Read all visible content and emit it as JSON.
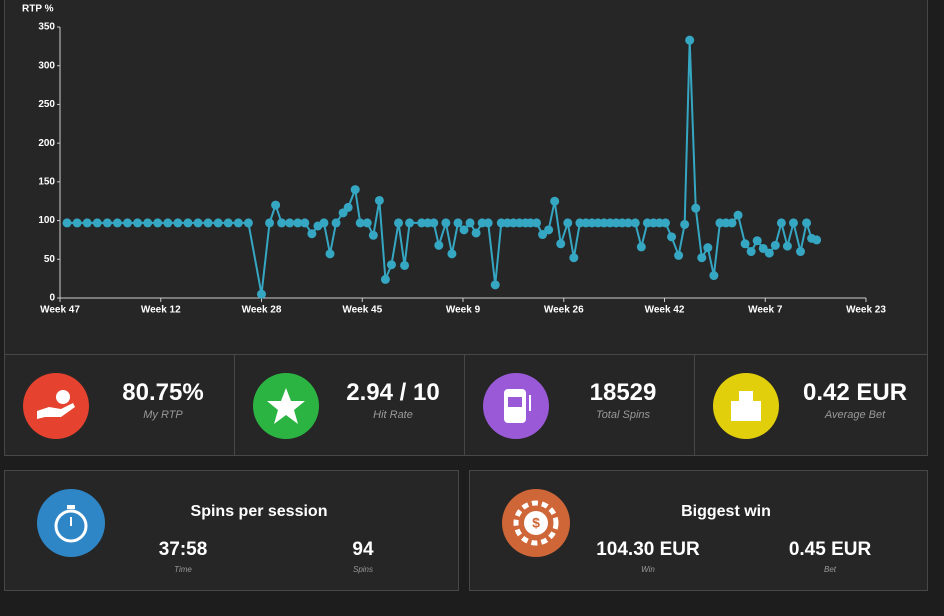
{
  "chart_data": {
    "type": "line",
    "y_label": "RTP %",
    "x": [
      0.07,
      0.17,
      0.27,
      0.37,
      0.47,
      0.57,
      0.67,
      0.77,
      0.87,
      0.97,
      1.07,
      1.17,
      1.27,
      1.37,
      1.47,
      1.57,
      1.67,
      1.77,
      1.87,
      2.0,
      2.08,
      2.14,
      2.2,
      2.28,
      2.36,
      2.43,
      2.5,
      2.56,
      2.62,
      2.68,
      2.74,
      2.81,
      2.86,
      2.93,
      2.98,
      3.05,
      3.11,
      3.17,
      3.23,
      3.29,
      3.36,
      3.42,
      3.47,
      3.59,
      3.65,
      3.71,
      3.76,
      3.83,
      3.89,
      3.95,
      4.01,
      4.07,
      4.13,
      4.19,
      4.25,
      4.32,
      4.38,
      4.44,
      4.5,
      4.56,
      4.62,
      4.67,
      4.73,
      4.79,
      4.85,
      4.91,
      4.97,
      5.04,
      5.1,
      5.16,
      5.22,
      5.28,
      5.34,
      5.4,
      5.46,
      5.52,
      5.58,
      5.64,
      5.71,
      5.77,
      5.83,
      5.89,
      5.95,
      6.01,
      6.07,
      6.14,
      6.2,
      6.25,
      6.31,
      6.37,
      6.43,
      6.49,
      6.55,
      6.61,
      6.67,
      6.73,
      6.8,
      6.86,
      6.92,
      6.98,
      7.04,
      7.1,
      7.16,
      7.22,
      7.28,
      7.35,
      7.41,
      7.46,
      7.51
    ],
    "series": [
      {
        "color": "#35a7c3",
        "values": [
          97,
          97,
          97,
          97,
          97,
          97,
          97,
          97,
          97,
          97,
          97,
          97,
          97,
          97,
          97,
          97,
          97,
          97,
          97,
          5,
          97,
          120,
          97,
          97,
          97,
          97,
          83,
          93,
          97,
          57,
          97,
          110,
          117,
          140,
          97,
          97,
          81,
          126,
          24,
          43,
          97,
          42,
          97,
          97,
          97,
          97,
          68,
          97,
          57,
          97,
          88,
          97,
          84,
          97,
          97,
          17,
          97,
          97,
          97,
          97,
          97,
          97,
          97,
          82,
          88,
          125,
          70,
          97,
          52,
          97,
          97,
          97,
          97,
          97,
          97,
          97,
          97,
          97,
          97,
          66,
          97,
          97,
          97,
          97,
          79,
          55,
          95,
          333,
          116,
          52,
          65,
          29,
          97,
          97,
          97,
          107,
          70,
          60,
          74,
          64,
          58,
          68,
          97,
          67,
          97,
          60,
          97,
          77,
          75
        ]
      }
    ],
    "xlim": [
      0,
      8
    ],
    "xticks": [
      {
        "value": 0,
        "label": "Week 47"
      },
      {
        "value": 1,
        "label": "Week 12"
      },
      {
        "value": 2,
        "label": "Week 28"
      },
      {
        "value": 3,
        "label": "Week 45"
      },
      {
        "value": 4,
        "label": "Week 9"
      },
      {
        "value": 5,
        "label": "Week 26"
      },
      {
        "value": 6,
        "label": "Week 42"
      },
      {
        "value": 7,
        "label": "Week 7"
      },
      {
        "value": 8,
        "label": "Week 23"
      }
    ],
    "ylim": [
      0,
      350
    ],
    "yticks": [
      0,
      50,
      100,
      150,
      200,
      250,
      300,
      350
    ]
  },
  "stats": [
    {
      "value": "80.75%",
      "label": "My RTP",
      "color": "#e5432f"
    },
    {
      "value": "2.94 / 10",
      "label": "Hit Rate",
      "color": "#2cb443"
    },
    {
      "value": "18529",
      "label": "Total Spins",
      "color": "#9a5ad8"
    },
    {
      "value": "0.42 EUR",
      "label": "Average Bet",
      "color": "#e2cf0c"
    }
  ],
  "sessions": {
    "title": "Spins per session",
    "color": "#2f86c6",
    "items": [
      {
        "value": "37:58",
        "label": "Time"
      },
      {
        "value": "94",
        "label": "Spins"
      }
    ]
  },
  "biggest_win": {
    "title": "Biggest win",
    "color": "#cf6638",
    "items": [
      {
        "value": "104.30 EUR",
        "label": "Win"
      },
      {
        "value": "0.45 EUR",
        "label": "Bet"
      }
    ]
  }
}
